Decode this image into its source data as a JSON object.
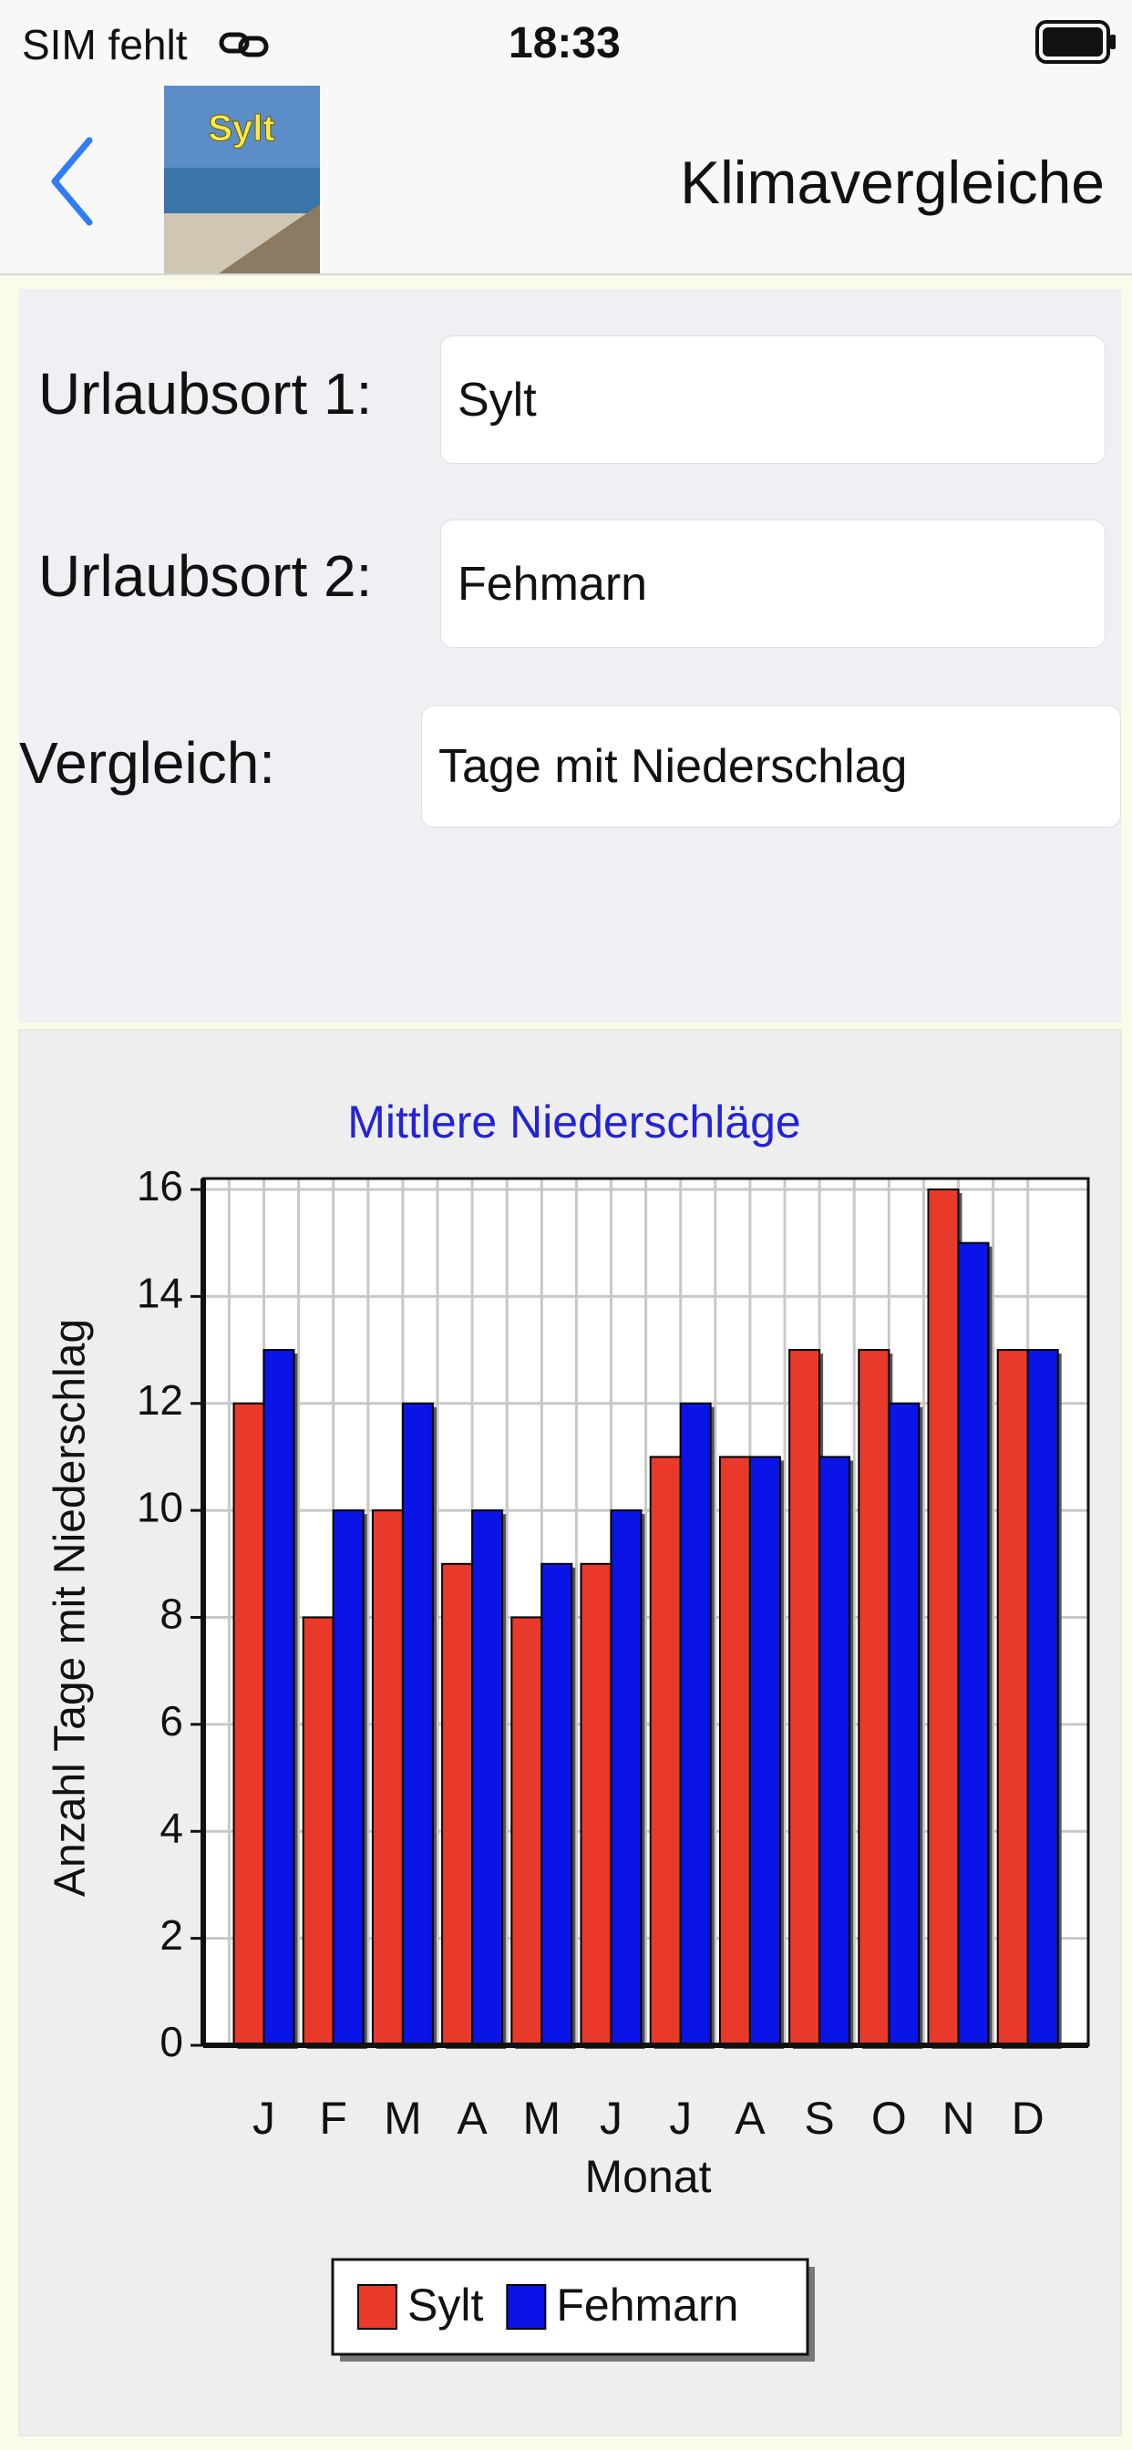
{
  "status": {
    "carrier": "SIM fehlt",
    "time": "18:33"
  },
  "nav": {
    "thumbnail_label": "Sylt",
    "title": "Klimavergleiche"
  },
  "form": {
    "rows": [
      {
        "label": "Urlaubsort 1:",
        "value": "Sylt"
      },
      {
        "label": "Urlaubsort 2:",
        "value": "Fehmarn"
      },
      {
        "label": "Vergleich:",
        "value": "Tage mit Niederschlag"
      }
    ]
  },
  "chart_data": {
    "type": "bar",
    "title": "Mittlere Niederschläge",
    "x_label": "Monat",
    "y_label": "Anzahl Tage mit Niederschlag",
    "categories": [
      "J",
      "F",
      "M",
      "A",
      "M",
      "J",
      "J",
      "A",
      "S",
      "O",
      "N",
      "D"
    ],
    "series": [
      {
        "name": "Sylt",
        "color": "#e8392a",
        "values": [
          12,
          8,
          10,
          9,
          8,
          9,
          11,
          11,
          13,
          13,
          16,
          13
        ]
      },
      {
        "name": "Fehmarn",
        "color": "#0b14e6",
        "values": [
          13,
          10,
          12,
          10,
          9,
          10,
          12,
          11,
          11,
          12,
          15,
          13
        ]
      }
    ],
    "ylim": [
      0,
      16
    ],
    "yticks": [
      0,
      2,
      4,
      6,
      8,
      10,
      12,
      14,
      16
    ],
    "grid": true,
    "legend": "bottom"
  }
}
